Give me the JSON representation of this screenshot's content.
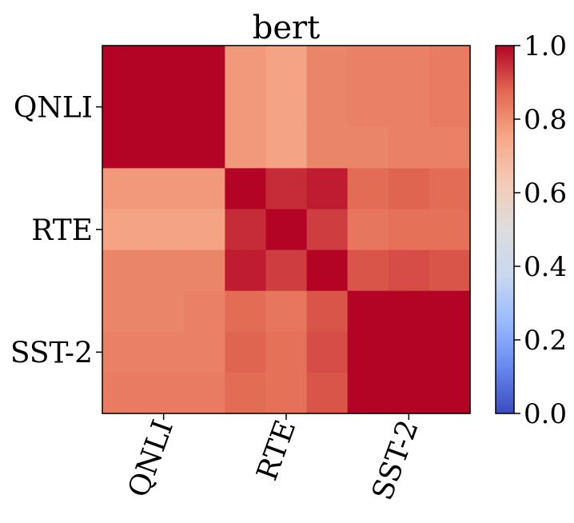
{
  "chart_data": {
    "type": "heatmap",
    "title": "bert",
    "row_labels": [
      "QNLI",
      "RTE",
      "SST-2"
    ],
    "col_labels": [
      "QNLI",
      "RTE",
      "SST-2"
    ],
    "colormap": "coolwarm",
    "colorbar": {
      "min": 0.0,
      "max": 1.0,
      "ticks": [
        "0.0",
        "0.2",
        "0.4",
        "0.6",
        "0.8",
        "1.0"
      ],
      "stops": [
        "#3b4cc0",
        "#6788ee",
        "#9abbff",
        "#c9d7f0",
        "#dddddd",
        "#f2cbb7",
        "#f7a889",
        "#e26952",
        "#b40426"
      ]
    },
    "matrix": [
      [
        1.0,
        1.0,
        1.0,
        0.78,
        0.76,
        0.82,
        0.83,
        0.83,
        0.84
      ],
      [
        1.0,
        1.0,
        1.0,
        0.78,
        0.76,
        0.82,
        0.83,
        0.83,
        0.84
      ],
      [
        1.0,
        1.0,
        1.0,
        0.78,
        0.76,
        0.82,
        0.82,
        0.83,
        0.83
      ],
      [
        0.78,
        0.78,
        0.78,
        1.0,
        0.95,
        0.97,
        0.87,
        0.88,
        0.87
      ],
      [
        0.76,
        0.76,
        0.76,
        0.95,
        1.0,
        0.93,
        0.85,
        0.86,
        0.86
      ],
      [
        0.82,
        0.82,
        0.82,
        0.97,
        0.93,
        1.0,
        0.9,
        0.91,
        0.9
      ],
      [
        0.82,
        0.82,
        0.83,
        0.87,
        0.85,
        0.9,
        1.0,
        1.0,
        1.0
      ],
      [
        0.83,
        0.83,
        0.83,
        0.88,
        0.86,
        0.91,
        1.0,
        1.0,
        1.0
      ],
      [
        0.84,
        0.84,
        0.84,
        0.87,
        0.86,
        0.9,
        1.0,
        1.0,
        1.0
      ]
    ]
  }
}
